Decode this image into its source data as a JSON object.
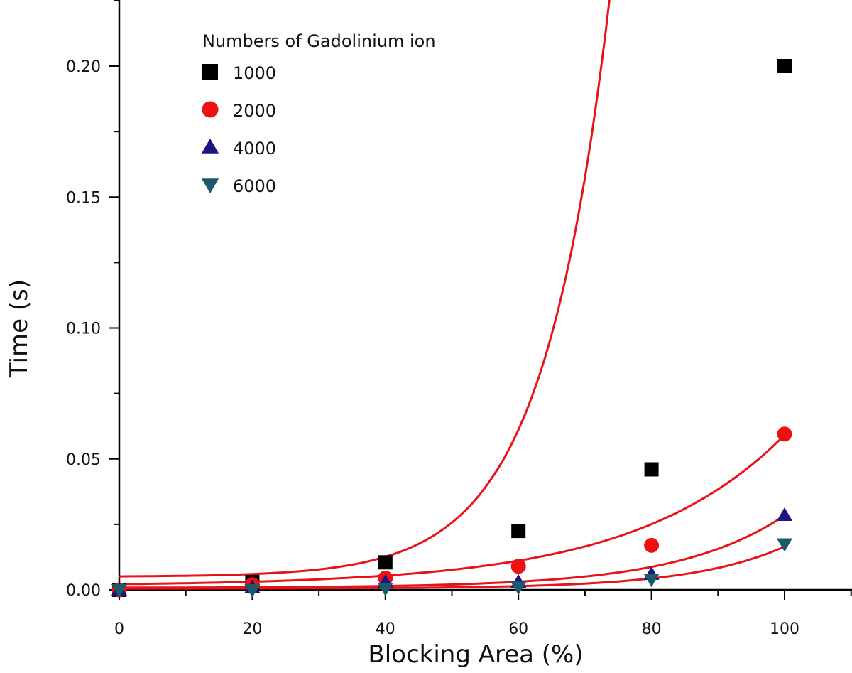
{
  "chart_data": {
    "type": "scatter",
    "xlabel": "Blocking Area (%)",
    "ylabel": "Time (s)",
    "xlim": [
      0,
      110
    ],
    "ylim": [
      0,
      0.225
    ],
    "x_ticks": [
      "0",
      "20",
      "40",
      "60",
      "80",
      "100"
    ],
    "y_ticks": [
      "0.00",
      "0.05",
      "0.10",
      "0.15",
      "0.20"
    ],
    "legend": {
      "title": "Numbers of Gadolinium ion",
      "position": "top-left"
    },
    "fit_color": "#e8121a",
    "series": [
      {
        "name": "1000",
        "marker": "square",
        "color": "#000000",
        "x": [
          0,
          20,
          40,
          60,
          80,
          100
        ],
        "y": [
          0.0,
          0.003,
          0.0105,
          0.0225,
          0.046,
          0.2
        ],
        "fit": {
          "a": 0.005,
          "b": 0.00014,
          "k": 0.0999
        }
      },
      {
        "name": "2000",
        "marker": "circle",
        "color": "#ee1111",
        "x": [
          0,
          20,
          40,
          60,
          80,
          100
        ],
        "y": [
          0.0,
          0.002,
          0.0045,
          0.009,
          0.017,
          0.0595
        ],
        "fit": {
          "a": 0.0015,
          "b": 0.00066,
          "k": 0.0447
        }
      },
      {
        "name": "4000",
        "marker": "triangle-up",
        "color": "#1c1580",
        "x": [
          0,
          20,
          40,
          60,
          80,
          100
        ],
        "y": [
          0.0,
          0.001,
          0.003,
          0.003,
          0.006,
          0.0285
        ],
        "fit": {
          "a": 0.0008,
          "b": 5.55e-05,
          "k": 0.0621
        }
      },
      {
        "name": "6000",
        "marker": "triangle-down",
        "color": "#1b5a6b",
        "x": [
          0,
          20,
          40,
          60,
          80,
          100
        ],
        "y": [
          0.0,
          0.0,
          0.0005,
          0.001,
          0.004,
          0.0175
        ],
        "fit": {
          "a": 0.0005,
          "b": 1.31e-05,
          "k": 0.0711
        }
      }
    ]
  }
}
